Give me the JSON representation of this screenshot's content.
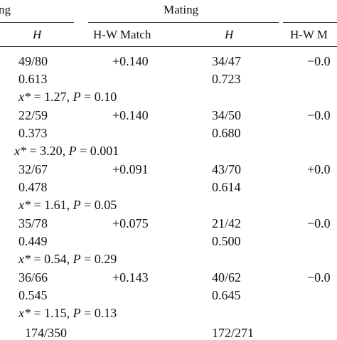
{
  "header": {
    "left_fragment": "ng",
    "group_title": "Mating",
    "columns": [
      {
        "label": "H",
        "italic": true
      },
      {
        "label": "H-W Match",
        "italic": false
      },
      {
        "label": "H",
        "italic": true
      },
      {
        "label": "H-W M",
        "italic": false
      }
    ]
  },
  "rows": [
    {
      "h1": "49/80",
      "hw1": "+0.140",
      "h2": "34/47",
      "hw2": "−0.0",
      "h1_dec": "0.613",
      "h2_dec": "0.723",
      "stat": {
        "chi_sym": "x*",
        "chi_val": " = 1.27, ",
        "p_sym": "P",
        "p_val": " = 0.10"
      }
    },
    {
      "h1": "22/59",
      "hw1": "+0.140",
      "h2": "34/50",
      "hw2": "−0.0",
      "h1_dec": "0.373",
      "h2_dec": "0.680",
      "stat": {
        "chi_sym": "x*",
        "chi_val": " = 3.20, ",
        "p_sym": "P",
        "p_val": " = 0.001"
      }
    },
    {
      "h1": "32/67",
      "hw1": "+0.091",
      "h2": "43/70",
      "hw2": "+0.0",
      "h1_dec": "0.478",
      "h2_dec": "0.614",
      "stat": {
        "chi_sym": "x*",
        "chi_val": " = 1.61, ",
        "p_sym": "P",
        "p_val": " = 0.05"
      }
    },
    {
      "h1": "35/78",
      "hw1": "+0.075",
      "h2": "21/42",
      "hw2": "−0.0",
      "h1_dec": "0.449",
      "h2_dec": "0.500",
      "stat": {
        "chi_sym": "x*",
        "chi_val": " = 0.54, ",
        "p_sym": "P",
        "p_val": " = 0.29"
      }
    },
    {
      "h1": "36/66",
      "hw1": "+0.143",
      "h2": "40/62",
      "hw2": "−0.0",
      "h1_dec": "0.545",
      "h2_dec": "0.645",
      "stat": {
        "chi_sym": "x*",
        "chi_val": " = 1.15, ",
        "p_sym": "P",
        "p_val": " = 0.13"
      }
    }
  ],
  "totals": {
    "h1": "174/350",
    "h2": "172/271"
  }
}
